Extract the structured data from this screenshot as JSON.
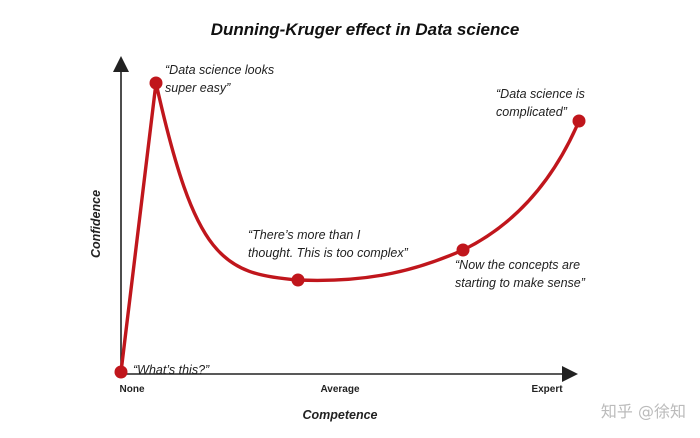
{
  "title": "Dunning-Kruger effect in Data science",
  "axes": {
    "y_label": "Confidence",
    "x_label": "Competence",
    "x_ticks": [
      "None",
      "Average",
      "Expert"
    ]
  },
  "curve_color": "#c0161c",
  "points": [
    {
      "id": "start",
      "label": "“What’s this?”"
    },
    {
      "id": "peak",
      "label_lines": [
        "“Data science looks",
        "super easy”"
      ]
    },
    {
      "id": "valley",
      "label_lines": [
        "“There’s more than I",
        "thought. This is too complex”"
      ]
    },
    {
      "id": "rising",
      "label_lines": [
        "“Now the concepts are",
        "starting to make sense”"
      ]
    },
    {
      "id": "end",
      "label_lines": [
        "“Data science is",
        "complicated”"
      ]
    }
  ],
  "watermark": "知乎 @徐知"
}
